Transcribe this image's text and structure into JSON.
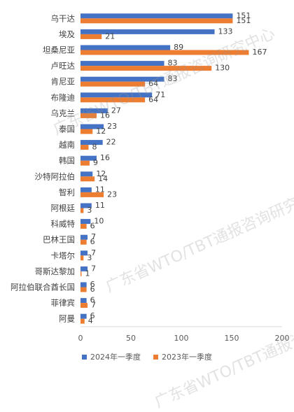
{
  "watermark": "广东省WTO/TBT通报咨询研究中心",
  "colors": {
    "series_2024": "#4472C4",
    "series_2023": "#ED7D31",
    "axis": "#d9d9d9",
    "text": "#595959"
  },
  "chart_data": {
    "type": "bar",
    "orientation": "horizontal",
    "categories": [
      "乌干达",
      "埃及",
      "坦桑尼亚",
      "卢旺达",
      "肯尼亚",
      "布隆迪",
      "乌克兰",
      "泰国",
      "越南",
      "韩国",
      "沙特阿拉伯",
      "智利",
      "阿根廷",
      "科威特",
      "巴林王国",
      "卡塔尔",
      "哥斯达黎加",
      "阿拉伯联合酋长国",
      "菲律宾",
      "阿曼"
    ],
    "series": [
      {
        "name": "2024年一季度",
        "values": [
          151,
          133,
          89,
          83,
          83,
          71,
          27,
          23,
          22,
          16,
          12,
          11,
          11,
          10,
          7,
          7,
          7,
          6,
          6,
          6
        ]
      },
      {
        "name": "2023年一季度",
        "values": [
          151,
          21,
          167,
          130,
          64,
          64,
          16,
          12,
          8,
          9,
          14,
          23,
          3,
          6,
          6,
          3,
          1,
          6,
          7,
          4
        ]
      }
    ],
    "xlim": [
      0,
      200
    ],
    "xticks": [
      "0",
      "50",
      "100",
      "150",
      "200"
    ],
    "legend_position": "bottom",
    "grid": false,
    "data_labels": true
  }
}
